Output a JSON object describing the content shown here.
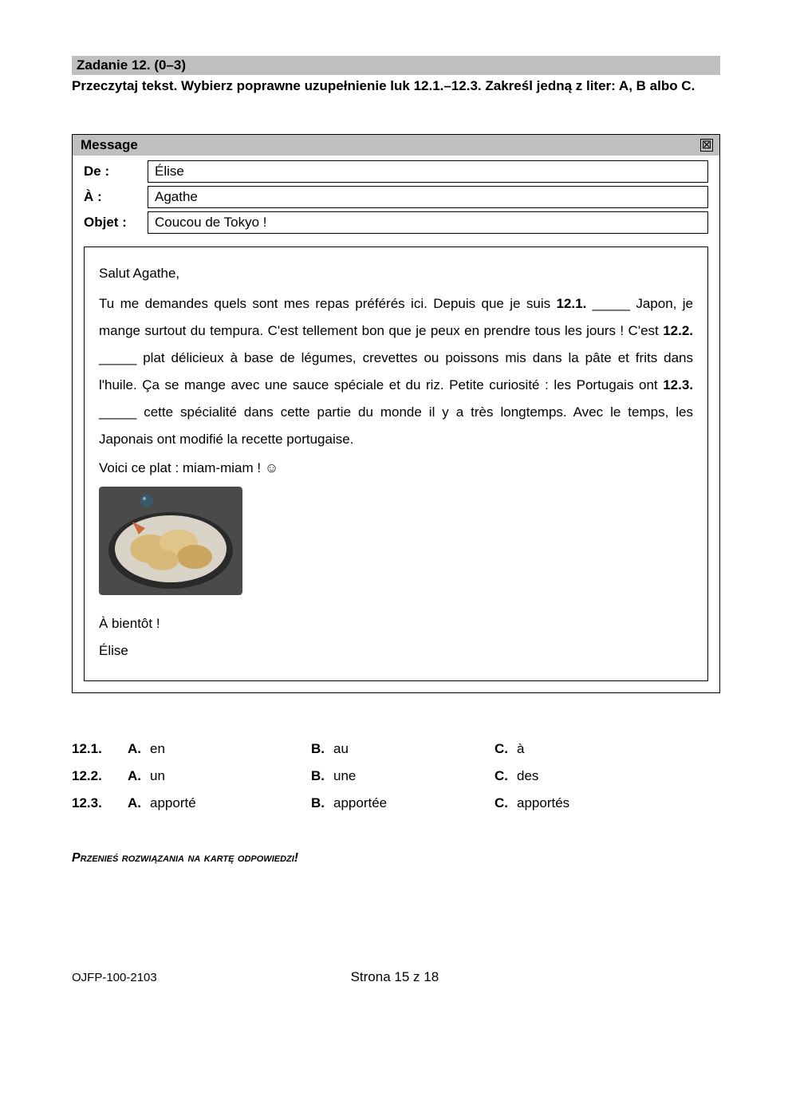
{
  "task": {
    "header": "Zadanie 12. (0–3)",
    "instructions": "Przeczytaj tekst. Wybierz poprawne uzupełnienie luk 12.1.–12.3. Zakreśl jedną z liter: A, B albo C."
  },
  "message": {
    "titlebar": "Message",
    "close_glyph": "⊠",
    "labels": {
      "from": "De :",
      "to": "À :",
      "subject": "Objet :"
    },
    "fields": {
      "from": "Élise",
      "to": "Agathe",
      "subject": "Coucou de Tokyo !"
    },
    "body": {
      "greeting": "Salut Agathe,",
      "text": "Tu me demandes quels sont mes repas préférés ici. Depuis que je suis 12.1. _____ Japon, je mange surtout du tempura. C'est tellement bon que je peux en prendre tous les jours ! C'est 12.2. _____ plat délicieux à base de légumes, crevettes ou poissons mis dans la pâte et frits dans l'huile. Ça se mange avec une sauce spéciale et du riz. Petite curiosité : les Portugais ont 12.3. _____ cette spécialité dans cette partie du monde il y a très longtemps. Avec le temps, les Japonais ont modifié la recette portugaise.",
      "voici": "Voici ce plat : miam-miam ! ☺",
      "closing1": "À bientôt !",
      "closing2": "Élise"
    }
  },
  "image": {
    "alt": "tempura-photo",
    "width": 180,
    "height": 136,
    "border_radius": 4,
    "plate_color": "#d9d4c7",
    "plate_rim": "#2a2a2a",
    "background": "#4a4a4a",
    "food_colors": [
      "#d9b97a",
      "#c9a560",
      "#e0c48a"
    ],
    "tail_color": "#d06a3a"
  },
  "options": {
    "rows": [
      {
        "num": "12.1.",
        "A": "en",
        "B": "au",
        "C": "à"
      },
      {
        "num": "12.2.",
        "A": "un",
        "B": "une",
        "C": "des"
      },
      {
        "num": "12.3.",
        "A": "apporté",
        "B": "apportée",
        "C": "apportés"
      }
    ],
    "letters": {
      "A": "A.",
      "B": "B.",
      "C": "C."
    }
  },
  "transfer": "Przenieś rozwiązania na kartę odpowiedzi!",
  "footer": {
    "left": "OJFP-100-2103",
    "center": "Strona 15 z 18"
  },
  "colors": {
    "gray_bg": "#bfbfbf",
    "border": "#000000",
    "text": "#000000"
  }
}
